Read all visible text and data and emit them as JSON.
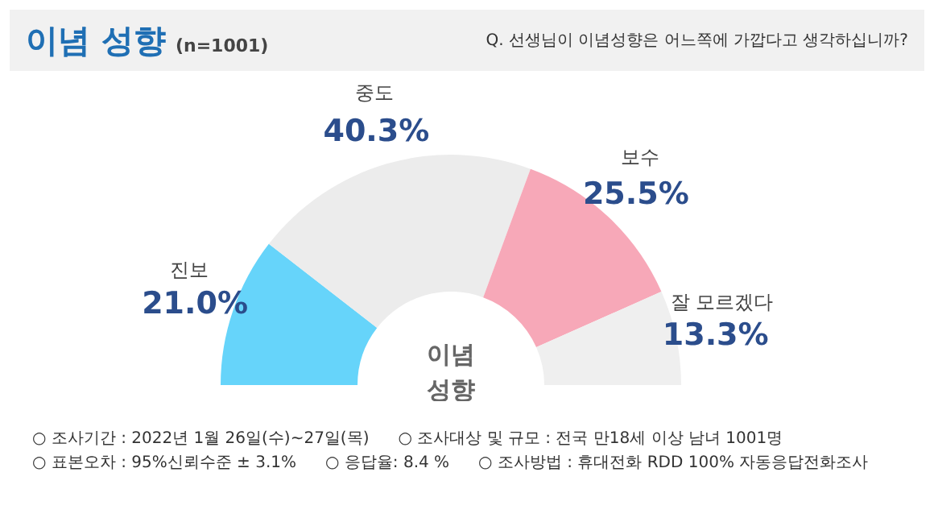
{
  "chart_data": {
    "type": "donut",
    "title": "이념 성향",
    "subtitle": "(n=1001)",
    "categories": [
      "진보",
      "중도",
      "보수",
      "잘 모르겠다"
    ],
    "values": [
      21.0,
      40.3,
      25.5,
      13.3
    ],
    "value_labels": [
      "21.0%",
      "40.3%",
      "25.5%",
      "13.3%"
    ],
    "colors": [
      "#66d4fa",
      "#ececec",
      "#f7a8b8",
      "#efefef"
    ],
    "annotations": [
      "Q. 선생님이 이념성향은 어느쪽에 가깝다고 생각하십니까?",
      "이념 성향",
      "○ 조사기간 : 2022년 1월 26일(수)~27일(목)",
      "○ 조사대상 및 규모 : 전국 만18세 이상 남녀 1001명",
      "○ 표본오차 : 95%신뢰수준 ± 3.1%",
      "○ 응답율: 8.4 %",
      "○ 조사방법 : 휴대전화 RDD 100% 자동응답전화조사"
    ]
  }
}
